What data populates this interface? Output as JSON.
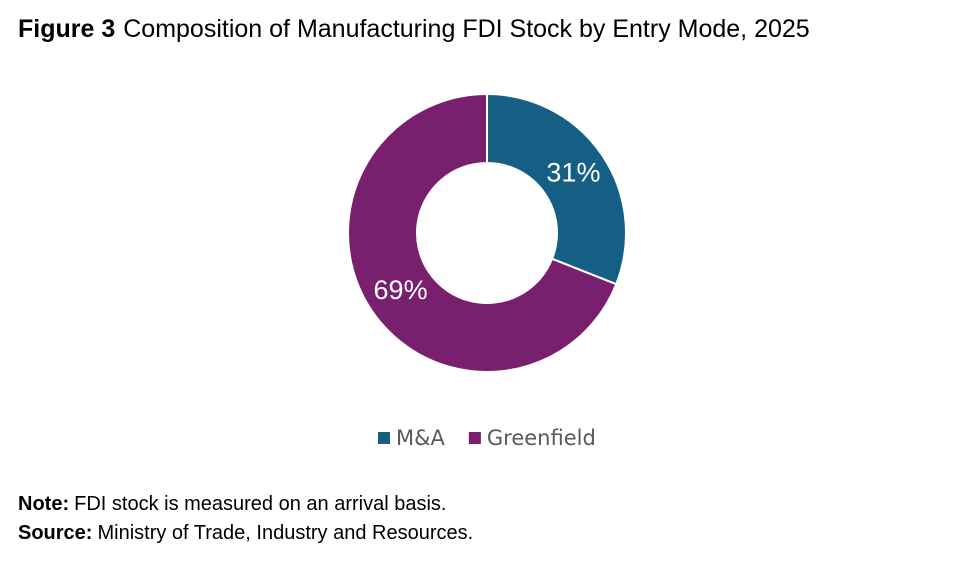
{
  "chart_data": {
    "type": "pie",
    "donut": true,
    "title_label": "Figure 3",
    "title": "Composition of Manufacturing FDI Stock by Entry Mode, 2025",
    "categories": [
      "M&A",
      "Greenfield"
    ],
    "values": [
      31,
      69
    ],
    "value_labels": [
      "31%",
      "69%"
    ],
    "colors": [
      "#155f84",
      "#78206e"
    ]
  },
  "note_label": "Note:",
  "note": "FDI stock is measured on an arrival basis.",
  "source_label": "Source:",
  "source": "Ministry of Trade, Industry and Resources."
}
